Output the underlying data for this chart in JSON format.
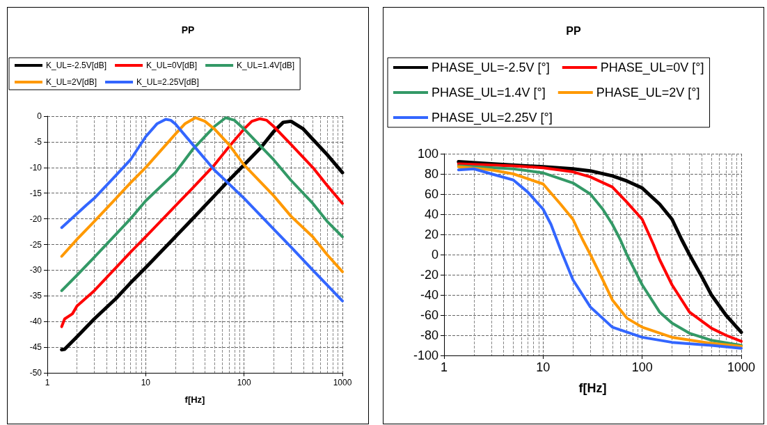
{
  "chart_data": [
    {
      "type": "line",
      "title": "PP",
      "xlabel": "f[Hz]",
      "log": "x",
      "xlim": [
        1,
        1000
      ],
      "xticks": [
        1,
        10,
        100,
        1000
      ],
      "ylim": [
        -50,
        0
      ],
      "yticks": [
        -50,
        -45,
        -40,
        -35,
        -30,
        -25,
        -20,
        -15,
        -10,
        -5,
        0
      ],
      "grid": true,
      "legend": "top",
      "marker": "none",
      "line_style": "solid",
      "series": [
        {
          "name": "K_UL=-2.5V[dB]",
          "color": "#000000",
          "x": [
            1.4,
            1.5,
            2,
            3,
            5,
            7,
            10,
            20,
            30,
            50,
            70,
            100,
            150,
            200,
            250,
            300,
            400,
            500,
            700,
            1000
          ],
          "values": [
            -45.5,
            -45.4,
            -43,
            -39.5,
            -35.5,
            -32.5,
            -29.5,
            -23.5,
            -20,
            -15.5,
            -12.5,
            -9.5,
            -6,
            -3,
            -1.2,
            -1,
            -2.5,
            -4.5,
            -7.5,
            -11
          ]
        },
        {
          "name": "K_UL=0V[dB]",
          "color": "#ff0000",
          "x": [
            1.4,
            1.5,
            1.8,
            2,
            3,
            5,
            7,
            10,
            20,
            30,
            50,
            70,
            100,
            120,
            145,
            170,
            200,
            300,
            500,
            700,
            1000
          ],
          "values": [
            -41,
            -39.5,
            -38.5,
            -37,
            -34,
            -29.5,
            -26.5,
            -23.5,
            -17.5,
            -14,
            -9.5,
            -6,
            -2.5,
            -1,
            -0.5,
            -0.8,
            -2,
            -5.5,
            -10,
            -13.5,
            -17
          ]
        },
        {
          "name": "K_UL=1.4V[dB]",
          "color": "#339966",
          "x": [
            1.4,
            2,
            3,
            5,
            7,
            10,
            20,
            30,
            50,
            65,
            80,
            100,
            200,
            300,
            500,
            700,
            1000
          ],
          "values": [
            -34,
            -31,
            -27.5,
            -23,
            -20,
            -16.5,
            -11,
            -6.5,
            -2,
            -0.3,
            -0.8,
            -2.5,
            -8.5,
            -12.5,
            -17,
            -20.5,
            -23.5
          ]
        },
        {
          "name": "K_UL=2V[dB]",
          "color": "#ff9900",
          "x": [
            1.4,
            2,
            3,
            5,
            7,
            10,
            20,
            25,
            32,
            40,
            50,
            70,
            100,
            200,
            300,
            500,
            700,
            1000
          ],
          "values": [
            -27.3,
            -24,
            -20.5,
            -16,
            -13,
            -10,
            -3.5,
            -1.5,
            -0.3,
            -1,
            -2.5,
            -5.5,
            -9.5,
            -15.5,
            -19.5,
            -23.5,
            -27,
            -30.3
          ]
        },
        {
          "name": "K_UL=2.25V[dB]",
          "color": "#3366ff",
          "x": [
            1.4,
            2,
            2.5,
            3,
            5,
            7,
            10,
            13,
            16,
            18,
            20,
            30,
            50,
            100,
            200,
            300,
            500,
            1000
          ],
          "values": [
            -21.7,
            -19,
            -17.3,
            -16,
            -11.5,
            -8.5,
            -4,
            -1.5,
            -0.6,
            -0.8,
            -1.5,
            -5.5,
            -10.5,
            -16,
            -22,
            -25.5,
            -30,
            -36
          ]
        }
      ]
    },
    {
      "type": "line",
      "title": "PP",
      "xlabel": "f[Hz]",
      "log": "x",
      "xlim": [
        1,
        1000
      ],
      "xticks": [
        1,
        10,
        100,
        1000
      ],
      "ylim": [
        -100,
        100
      ],
      "yticks": [
        -100,
        -80,
        -60,
        -40,
        -20,
        0,
        20,
        40,
        60,
        80,
        100
      ],
      "grid": true,
      "legend": "top",
      "marker": "none",
      "line_style": "solid",
      "series": [
        {
          "name": "PHASE_UL=-2.5V [°]",
          "color": "#000000",
          "x": [
            1.4,
            3,
            10,
            20,
            30,
            50,
            70,
            100,
            150,
            200,
            250,
            300,
            400,
            500,
            700,
            1000
          ],
          "values": [
            92,
            90,
            87,
            85,
            83,
            78,
            73,
            66,
            50,
            35,
            15,
            0,
            -22,
            -40,
            -60,
            -77
          ]
        },
        {
          "name": "PHASE_UL=0V [°]",
          "color": "#ff0000",
          "x": [
            1.4,
            5,
            10,
            20,
            30,
            50,
            70,
            100,
            130,
            150,
            200,
            300,
            500,
            700,
            1000
          ],
          "values": [
            90,
            88,
            86,
            82,
            77,
            67,
            52,
            35,
            10,
            -5,
            -30,
            -57,
            -73,
            -80,
            -86
          ]
        },
        {
          "name": "PHASE_UL=1.4V [°]",
          "color": "#339966",
          "x": [
            1.4,
            5,
            10,
            20,
            30,
            40,
            50,
            60,
            70,
            100,
            150,
            200,
            300,
            500,
            1000
          ],
          "values": [
            88,
            85,
            81,
            71,
            60,
            45,
            30,
            15,
            0,
            -30,
            -57,
            -68,
            -78,
            -85,
            -90
          ]
        },
        {
          "name": "PHASE_UL=2V [°]",
          "color": "#ff9900",
          "x": [
            1.4,
            3,
            5,
            10,
            15,
            20,
            25,
            30,
            40,
            50,
            70,
            100,
            200,
            500,
            1000
          ],
          "values": [
            87,
            84,
            80,
            70,
            50,
            35,
            15,
            0,
            -25,
            -45,
            -63,
            -72,
            -82,
            -88,
            -91
          ]
        },
        {
          "name": "PHASE_UL=2.25V [°]",
          "color": "#3366ff",
          "x": [
            1.4,
            2,
            3,
            5,
            7,
            10,
            12,
            15,
            20,
            30,
            50,
            100,
            200,
            500,
            1000
          ],
          "values": [
            84,
            85,
            80,
            74,
            62,
            45,
            30,
            5,
            -25,
            -52,
            -72,
            -82,
            -87,
            -90,
            -93
          ]
        }
      ]
    }
  ]
}
